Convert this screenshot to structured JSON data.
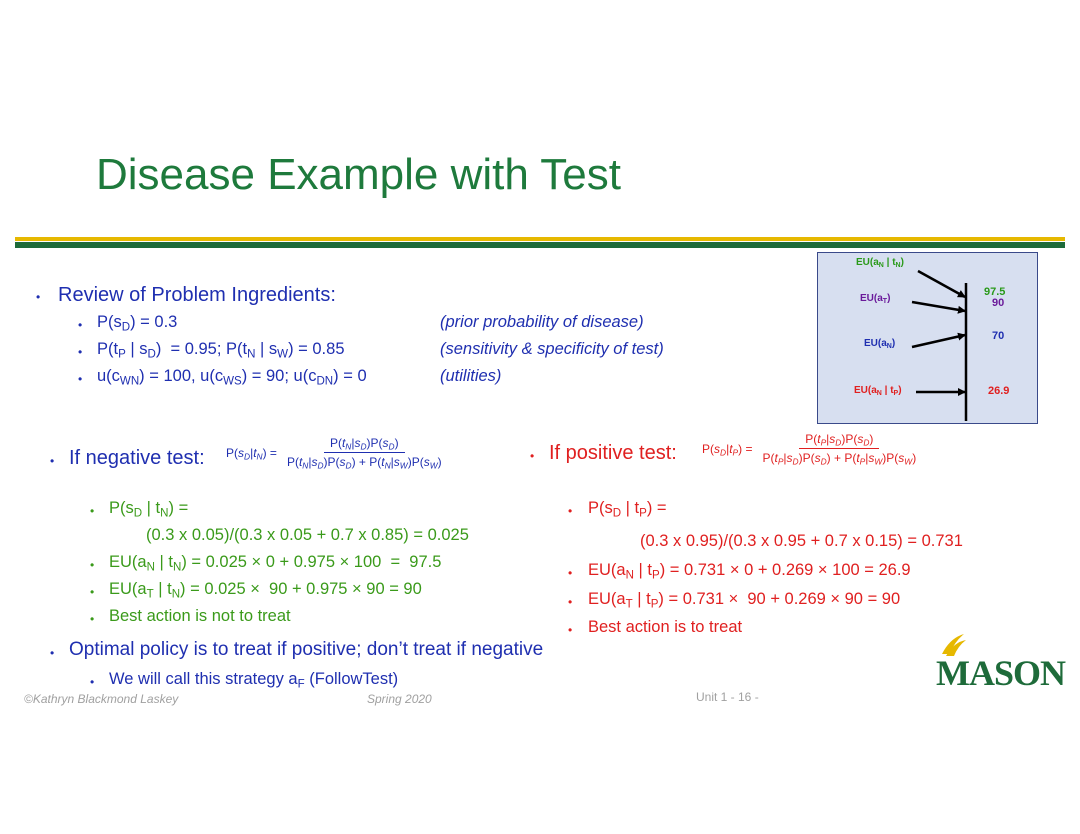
{
  "title": "Disease Example with Test",
  "review": {
    "heading": "Review of Problem Ingredients:",
    "items": [
      {
        "formula": "P(sD) = 0.3",
        "note": "(prior probability of disease)"
      },
      {
        "formula": "P(tP | sD)  = 0.95; P(tN | sW) = 0.85",
        "note": "(sensitivity & specificity of test)"
      },
      {
        "formula": "u(cWN) = 100, u(cWS) = 90; u(cDN) = 0",
        "note": "(utilities)"
      }
    ]
  },
  "negative": {
    "heading": "If negative test:",
    "bayes_lhs": "P(sD|tN) =",
    "bayes_num": "P(tN|sD)P(sD)",
    "bayes_den": "P(tN|sD)P(sD) + P(tN|sW)P(sW)",
    "lines": [
      "P(sD | tN) =",
      "(0.3 x 0.05)/(0.3 x 0.05 + 0.7 x 0.85) = 0.025",
      "EU(aN | tN) = 0.025 × 0 + 0.975 × 100  =  97.5",
      "EU(aT | tN) = 0.025 ×  90 + 0.975 × 90 = 90",
      "Best action is not to treat"
    ]
  },
  "positive": {
    "heading": "If positive test:",
    "bayes_lhs": "P(sD|tP) =",
    "bayes_num": "P(tP|sD)P(sD)",
    "bayes_den": "P(tP|sD)P(sD) + P(tP|sW)P(sW)",
    "lines": [
      "P(sD | tP) =",
      "(0.3 x 0.95)/(0.3 x 0.95 + 0.7 x 0.15) = 0.731",
      "EU(aN | tP) = 0.731 × 0 + 0.269 × 100 = 26.9",
      "EU(aT | tP) = 0.731 ×  90 + 0.269 × 90 = 90",
      "Best action is to treat"
    ]
  },
  "policy": {
    "heading": "Optimal policy is to treat if positive; don’t treat if negative",
    "sub": "We will call this strategy aF (FollowTest)"
  },
  "tree": {
    "labels": [
      "EU(aN | tN)",
      "EU(aT)",
      "EU(aN)",
      "EU(aN | tP)"
    ],
    "values": [
      "97.5",
      "90",
      "70",
      "26.9"
    ],
    "colors": {
      "green": "#2a9a1a",
      "purple": "#6a1a9a",
      "blue": "#1f2fb0",
      "red": "#e02020"
    }
  },
  "footer": {
    "author": "©Kathryn Blackmond Laskey",
    "term": "Spring 2020",
    "page": "Unit 1 - 16 -"
  },
  "logo": {
    "text": "MASON"
  },
  "colors": {
    "title": "#1e7a3c",
    "blue": "#1f2fb0",
    "green": "#3a9a1a",
    "red": "#e02020",
    "bar_yellow": "#e6b800",
    "bar_green": "#1e6b3a"
  }
}
